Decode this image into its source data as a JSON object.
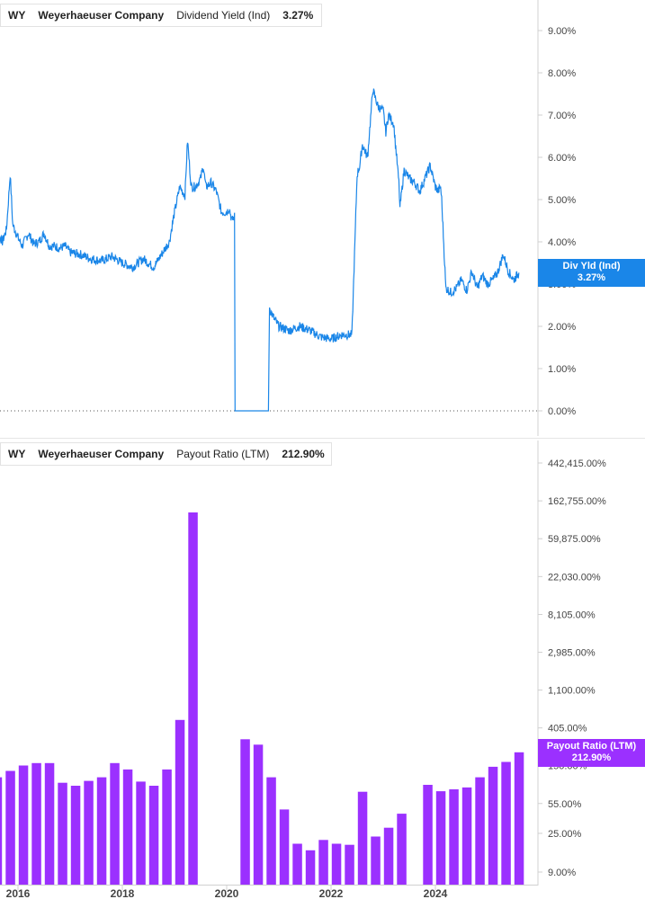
{
  "colors": {
    "yield": "#1a86e8",
    "payout": "#9b30ff",
    "axis": "#d0d0d0",
    "text": "#444444"
  },
  "top_legend": {
    "ticker": "WY",
    "company": "Weyerhaeuser Company",
    "metric": "Dividend Yield (Ind)",
    "value": "3.27%"
  },
  "bottom_legend": {
    "ticker": "WY",
    "company": "Weyerhaeuser Company",
    "metric": "Payout Ratio (LTM)",
    "value": "212.90%"
  },
  "top_tag": {
    "label": "Div Yld (Ind)",
    "value": "3.27%"
  },
  "bottom_tag": {
    "label": "Payout Ratio (LTM)",
    "value": "212.90%"
  },
  "chart_data": [
    {
      "type": "line",
      "title": "",
      "series_name": "Dividend Yield (Ind)",
      "xlim": [
        2015.5,
        2026.0
      ],
      "ylim": [
        0,
        9.5
      ],
      "y_ticks": [
        0,
        1,
        2,
        3,
        4,
        5,
        6,
        7,
        8,
        9
      ],
      "y_tick_labels": [
        "0.00%",
        "1.00%",
        "2.00%",
        "3.00%",
        "4.00%",
        "5.00%",
        "6.00%",
        "7.00%",
        "8.00%",
        "9.00%"
      ],
      "x": [
        2015.5,
        2015.55,
        2015.62,
        2015.7,
        2015.78,
        2015.85,
        2015.9,
        2016.0,
        2016.08,
        2016.2,
        2016.3,
        2016.4,
        2016.5,
        2016.6,
        2016.7,
        2016.8,
        2016.9,
        2017.0,
        2017.2,
        2017.4,
        2017.6,
        2017.8,
        2018.0,
        2018.2,
        2018.4,
        2018.6,
        2018.8,
        2018.9,
        2019.0,
        2019.1,
        2019.2,
        2019.25,
        2019.32,
        2019.4,
        2019.5,
        2019.55,
        2019.6,
        2019.7,
        2019.8,
        2019.9,
        2020.0,
        2020.05,
        2020.1,
        2020.15,
        2020.16,
        2020.5,
        2020.8,
        2020.82,
        2020.83,
        2020.9,
        2021.0,
        2021.2,
        2021.4,
        2021.6,
        2021.8,
        2022.0,
        2022.2,
        2022.4,
        2022.5,
        2022.55,
        2022.6,
        2022.7,
        2022.8,
        2022.9,
        2023.0,
        2023.05,
        2023.1,
        2023.2,
        2023.3,
        2023.32,
        2023.4,
        2023.5,
        2023.6,
        2023.7,
        2023.8,
        2023.9,
        2024.0,
        2024.05,
        2024.1,
        2024.12,
        2024.2,
        2024.3,
        2024.4,
        2024.5,
        2024.6,
        2024.7,
        2024.8,
        2024.9,
        2025.0,
        2025.1,
        2025.2,
        2025.3,
        2025.4,
        2025.5,
        2025.6
      ],
      "y": [
        4.4,
        4.6,
        4.2,
        4.0,
        4.3,
        5.6,
        4.4,
        4.1,
        3.9,
        4.2,
        3.95,
        4.0,
        4.2,
        3.9,
        3.9,
        3.85,
        3.9,
        3.75,
        3.7,
        3.6,
        3.55,
        3.65,
        3.5,
        3.4,
        3.6,
        3.4,
        3.8,
        4.0,
        4.7,
        5.3,
        5.1,
        6.4,
        5.3,
        5.3,
        5.5,
        5.8,
        5.3,
        5.4,
        5.2,
        4.7,
        4.7,
        4.8,
        4.5,
        4.6,
        0.0,
        0.0,
        0.0,
        2.5,
        2.4,
        2.2,
        2.0,
        1.9,
        2.0,
        1.9,
        1.75,
        1.7,
        1.8,
        1.8,
        5.6,
        5.8,
        6.3,
        6.0,
        7.6,
        7.2,
        7.1,
        6.6,
        7.0,
        6.8,
        5.4,
        4.8,
        5.7,
        5.5,
        5.4,
        5.2,
        5.5,
        5.8,
        5.3,
        5.2,
        5.3,
        5.0,
        2.9,
        2.8,
        2.9,
        3.1,
        2.85,
        3.3,
        2.9,
        3.2,
        3.0,
        3.1,
        3.3,
        3.7,
        3.3,
        3.1,
        3.27
      ],
      "x_ticks": [
        2016,
        2018,
        2020,
        2022,
        2024
      ],
      "x_tick_labels": [
        "2016",
        "2018",
        "2020",
        "2022",
        "2024"
      ]
    },
    {
      "type": "bar",
      "title": "",
      "series_name": "Payout Ratio (LTM)",
      "y_scale": "log",
      "ylim": [
        9,
        442415
      ],
      "y_ticks": [
        9,
        25,
        55,
        150,
        405,
        1100,
        2985,
        8105,
        22030,
        59875,
        162755,
        442415
      ],
      "y_tick_labels": [
        "9.00%",
        "25.00%",
        "55.00%",
        "150.00%",
        "405.00%",
        "1,100.00%",
        "2,985.00%",
        "8,105.00%",
        "22,030.00%",
        "59,875.00%",
        "162,755.00%",
        "442,415.00%"
      ],
      "x": [
        2015.5,
        2015.75,
        2016.0,
        2016.25,
        2016.5,
        2016.75,
        2017.0,
        2017.25,
        2017.5,
        2017.75,
        2018.0,
        2018.25,
        2018.5,
        2018.75,
        2019.0,
        2019.25,
        2019.5,
        2020.25,
        2020.5,
        2020.75,
        2021.0,
        2021.25,
        2021.5,
        2021.75,
        2022.0,
        2022.25,
        2022.5,
        2022.75,
        2023.0,
        2023.25,
        2023.75,
        2024.0,
        2024.25,
        2024.5,
        2024.75,
        2025.0,
        2025.25,
        2025.5
      ],
      "values": [
        110,
        130,
        150,
        160,
        160,
        95,
        88,
        100,
        110,
        160,
        135,
        98,
        88,
        135,
        500,
        120000,
        0,
        300,
        260,
        110,
        47,
        19,
        16,
        21,
        19,
        18.5,
        75,
        23,
        29,
        42,
        90,
        76,
        80,
        84,
        110,
        145,
        165,
        212.9
      ],
      "x_ticks": [
        2016,
        2018,
        2020,
        2022,
        2024
      ],
      "x_tick_labels": [
        "2016",
        "2018",
        "2020",
        "2022",
        "2024"
      ]
    }
  ]
}
